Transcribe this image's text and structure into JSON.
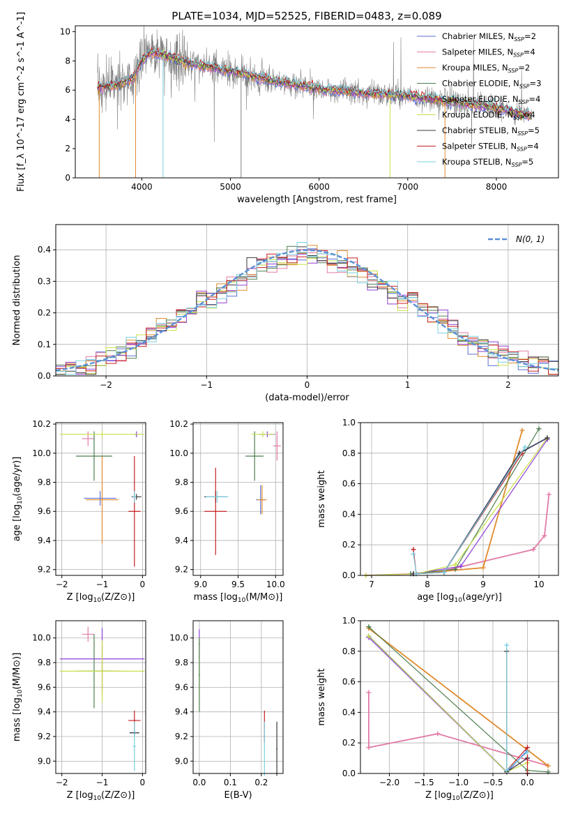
{
  "figure": {
    "title": "PLATE=1034, MJD=52525, FIBERID=0483, z=0.089"
  },
  "colors": {
    "Chabrier MILES": "#5b6fd6",
    "Salpeter MILES": "#e27aa6",
    "Kroupa MILES": "#e08a2c",
    "Chabrier ELODIE": "#4e7d4e",
    "Salpeter ELODIE": "#8e3fd6",
    "Kroupa ELODIE": "#c8e04a",
    "Chabrier STELIB": "#3a3a3a",
    "Salpeter STELIB": "#c81e1e",
    "Kroupa STELIB": "#7ad0e0",
    "data": "#808080",
    "gaussian": "#5b8fd6",
    "grid": "#b0b0b0"
  },
  "chart_data": [
    {
      "id": "spectrum",
      "type": "line",
      "title": "PLATE=1034, MJD=52525, FIBERID=0483, z=0.089",
      "xlabel": "wavelength [Angstrom, rest frame]",
      "ylabel": "Flux [f_λ 10^-17 erg cm^-2 s^-1 A^-1]",
      "xlim": [
        3250,
        8700
      ],
      "ylim": [
        0,
        10.4
      ],
      "xticks": [
        4000,
        5000,
        6000,
        7000,
        8000
      ],
      "yticks": [
        0,
        2,
        4,
        6,
        8,
        10
      ],
      "grid": false,
      "legend_position": "top-right",
      "legend": [
        {
          "label": "Chabrier MILES, N",
          "sub": "SSP",
          "tail": "=2"
        },
        {
          "label": "Salpeter MILES, N",
          "sub": "SSP",
          "tail": "=4"
        },
        {
          "label": "Kroupa MILES, N",
          "sub": "SSP",
          "tail": "=2"
        },
        {
          "label": "Chabrier ELODIE, N",
          "sub": "SSP",
          "tail": "=3"
        },
        {
          "label": "Salpeter ELODIE, N",
          "sub": "SSP",
          "tail": "=4"
        },
        {
          "label": "Kroupa ELODIE, N",
          "sub": "SSP",
          "tail": "=4"
        },
        {
          "label": "Chabrier STELIB, N",
          "sub": "SSP",
          "tail": "=5"
        },
        {
          "label": "Salpeter STELIB, N",
          "sub": "SSP",
          "tail": "=4"
        },
        {
          "label": "Kroupa STELIB, N",
          "sub": "SSP",
          "tail": "=5"
        }
      ],
      "continuum": {
        "x": [
          3500,
          3700,
          3900,
          4000,
          4100,
          4300,
          4500,
          5000,
          5500,
          6000,
          6500,
          7000,
          7500,
          8000,
          8400
        ],
        "y": [
          6.2,
          6.3,
          6.8,
          8.0,
          8.6,
          8.3,
          7.9,
          7.3,
          6.6,
          6.1,
          5.8,
          5.6,
          5.2,
          4.8,
          4.2
        ]
      }
    },
    {
      "id": "residuals",
      "type": "step",
      "xlabel": "(data-model)/error",
      "ylabel": "Normed distribution",
      "xlim": [
        -2.5,
        2.5
      ],
      "ylim": [
        0,
        0.48
      ],
      "xticks": [
        -2,
        -1,
        0,
        1,
        2
      ],
      "yticks": [
        0.0,
        0.1,
        0.2,
        0.3,
        0.4
      ],
      "grid": true,
      "legend_position": "top-right",
      "gaussian_label": "N(0, 1)",
      "bin_width": 0.1
    },
    {
      "id": "age-vs-Z",
      "type": "errorbar",
      "xlabel": "Z [log10(Z/Z⊙)]",
      "ylabel": "age  [log10(age/yr)]",
      "xlim": [
        -2.15,
        0.08
      ],
      "ylim": [
        9.16,
        10.21
      ],
      "xticks": [
        -2,
        -1,
        0
      ],
      "yticks": [
        9.2,
        9.4,
        9.6,
        9.8,
        10.0,
        10.2
      ],
      "grid": true,
      "points": [
        {
          "model": "Chabrier MILES",
          "x": -1.05,
          "y": 9.69,
          "xerr": 0.4,
          "yerr": 0.05
        },
        {
          "model": "Salpeter MILES",
          "x": -1.35,
          "y": 10.1,
          "xerr": 0.15,
          "yerr": 0.05
        },
        {
          "model": "Kroupa MILES",
          "x": -1.0,
          "y": 9.68,
          "xerr": 0.4,
          "yerr": 0.3
        },
        {
          "model": "Chabrier ELODIE",
          "x": -1.2,
          "y": 9.98,
          "xerr": 0.45,
          "yerr": 0.17
        },
        {
          "model": "Salpeter ELODIE",
          "x": -0.15,
          "y": 10.13,
          "xerr": 0.05,
          "yerr": 0.02
        },
        {
          "model": "Kroupa ELODIE",
          "x": -1.0,
          "y": 10.13,
          "xerr": 1.05,
          "yerr": 0.02
        },
        {
          "model": "Chabrier STELIB",
          "x": -0.15,
          "y": 9.7,
          "xerr": 0.12,
          "yerr": 0.02
        },
        {
          "model": "Salpeter STELIB",
          "x": -0.2,
          "y": 9.6,
          "xerr": 0.15,
          "yerr": 0.38
        },
        {
          "model": "Kroupa STELIB",
          "x": -0.2,
          "y": 9.7,
          "xerr": 0.04,
          "yerr": 0.04
        }
      ]
    },
    {
      "id": "age-vs-mass",
      "type": "errorbar",
      "xlabel": "mass [log10(M/M⊙)]",
      "ylabel": "",
      "xlim": [
        8.9,
        10.1
      ],
      "ylim": [
        9.16,
        10.21
      ],
      "xticks": [
        9.0,
        9.5,
        10.0
      ],
      "yticks": [
        9.2,
        9.4,
        9.6,
        9.8,
        10.0,
        10.2
      ],
      "grid": true,
      "points": [
        {
          "model": "Chabrier MILES",
          "x": 9.8,
          "y": 9.68,
          "xerr": 0.06,
          "yerr": 0.1
        },
        {
          "model": "Salpeter MILES",
          "x": 10.02,
          "y": 10.05,
          "xerr": 0.05,
          "yerr": 0.1
        },
        {
          "model": "Kroupa MILES",
          "x": 9.82,
          "y": 9.68,
          "xerr": 0.06,
          "yerr": 0.1
        },
        {
          "model": "Chabrier ELODIE",
          "x": 9.72,
          "y": 9.98,
          "xerr": 0.12,
          "yerr": 0.17
        },
        {
          "model": "Salpeter ELODIE",
          "x": 9.89,
          "y": 10.13,
          "xerr": 0.1,
          "yerr": 0.02
        },
        {
          "model": "Kroupa ELODIE",
          "x": 9.83,
          "y": 10.13,
          "xerr": 0.15,
          "yerr": 0.02
        },
        {
          "model": "Chabrier STELIB",
          "x": 9.2,
          "y": 9.7,
          "xerr": 0.15,
          "yerr": 0.04
        },
        {
          "model": "Salpeter STELIB",
          "x": 9.2,
          "y": 9.6,
          "xerr": 0.15,
          "yerr": 0.3
        },
        {
          "model": "Kroupa STELIB",
          "x": 9.22,
          "y": 9.7,
          "xerr": 0.15,
          "yerr": 0.04
        }
      ]
    },
    {
      "id": "mass-weight-vs-age",
      "type": "line",
      "xlabel": "age  [log10(age/yr)]",
      "ylabel": "mass weight",
      "xlim": [
        6.8,
        10.35
      ],
      "ylim": [
        0,
        1.0
      ],
      "xticks": [
        7,
        8,
        9,
        10
      ],
      "yticks": [
        0.0,
        0.2,
        0.4,
        0.6,
        0.8,
        1.0
      ],
      "grid": true,
      "series": [
        {
          "model": "Chabrier MILES",
          "x": [
            7.7,
            8.3,
            9.65,
            10.15
          ],
          "y": [
            0.01,
            0.02,
            0.8,
            0.9
          ]
        },
        {
          "model": "Salpeter MILES",
          "x": [
            6.9,
            7.75,
            8.3,
            9.9,
            10.1,
            10.18
          ],
          "y": [
            0.0,
            0.01,
            0.03,
            0.17,
            0.26,
            0.53
          ]
        },
        {
          "model": "Kroupa MILES",
          "x": [
            7.75,
            9.0,
            9.7
          ],
          "y": [
            0.01,
            0.05,
            0.95
          ]
        },
        {
          "model": "Chabrier ELODIE",
          "x": [
            7.7,
            8.5,
            10.0
          ],
          "y": [
            0.01,
            0.04,
            0.96
          ]
        },
        {
          "model": "Salpeter ELODIE",
          "x": [
            7.75,
            8.6,
            10.15
          ],
          "y": [
            0.01,
            0.06,
            0.89
          ]
        },
        {
          "model": "Kroupa ELODIE",
          "x": [
            6.9,
            7.8,
            8.5,
            10.15
          ],
          "y": [
            0.0,
            0.01,
            0.07,
            0.9
          ]
        },
        {
          "model": "Chabrier STELIB",
          "x": [
            7.75,
            8.3,
            9.65,
            10.15
          ],
          "y": [
            0.01,
            0.02,
            0.8,
            0.9
          ]
        },
        {
          "model": "Salpeter STELIB",
          "x": [
            7.75,
            7.8,
            8.3,
            9.7
          ],
          "y": [
            0.17,
            0.01,
            0.02,
            0.8
          ]
        },
        {
          "model": "Kroupa STELIB",
          "x": [
            7.75,
            7.8,
            8.3,
            9.75
          ],
          "y": [
            0.14,
            0.01,
            0.02,
            0.84
          ]
        }
      ]
    },
    {
      "id": "mass-vs-Z",
      "type": "errorbar",
      "xlabel": "Z [log10(Z/Z⊙)]",
      "ylabel": "mass [log10(M/M⊙)]",
      "xlim": [
        -2.15,
        0.08
      ],
      "ylim": [
        8.9,
        10.14
      ],
      "xticks": [
        -2,
        -1,
        0
      ],
      "yticks": [
        9.0,
        9.2,
        9.4,
        9.6,
        9.8,
        10.0
      ],
      "grid": true,
      "points": [
        {
          "model": "Chabrier MILES",
          "x": -0.2,
          "y": 9.23,
          "xerr": 0.12,
          "yerr": 0.02
        },
        {
          "model": "Salpeter MILES",
          "x": -1.35,
          "y": 10.03,
          "xerr": 0.15,
          "yerr": 0.06
        },
        {
          "model": "Kroupa MILES",
          "x": -1.0,
          "y": 9.73,
          "xerr": 0.45,
          "yerr": 0.2
        },
        {
          "model": "Chabrier ELODIE",
          "x": -1.2,
          "y": 9.73,
          "xerr": 0.45,
          "yerr": 0.3
        },
        {
          "model": "Salpeter ELODIE",
          "x": -1.0,
          "y": 9.83,
          "xerr": 1.05,
          "yerr": 0.25
        },
        {
          "model": "Kroupa ELODIE",
          "x": -1.0,
          "y": 9.73,
          "xerr": 1.05,
          "yerr": 0.25
        },
        {
          "model": "Chabrier STELIB",
          "x": -0.2,
          "y": 9.23,
          "xerr": 0.12,
          "yerr": 0.02
        },
        {
          "model": "Salpeter STELIB",
          "x": -0.2,
          "y": 9.33,
          "xerr": 0.15,
          "yerr": 0.08
        },
        {
          "model": "Kroupa STELIB",
          "x": -0.2,
          "y": 9.12,
          "xerr": 0.04,
          "yerr": 0.2
        }
      ]
    },
    {
      "id": "mass-vs-EBV",
      "type": "errorbar",
      "xlabel": "E(B-V)",
      "ylabel": "",
      "xlim": [
        -0.02,
        0.27
      ],
      "ylim": [
        8.9,
        10.14
      ],
      "xticks": [
        0.0,
        0.1,
        0.2
      ],
      "yticks": [
        9.0,
        9.2,
        9.4,
        9.6,
        9.8,
        10.0
      ],
      "grid": true,
      "points": [
        {
          "model": "Salpeter ELODIE",
          "x": 0.0,
          "y": 9.95,
          "xerr": 0.002,
          "yerr": 0.12
        },
        {
          "model": "Kroupa ELODIE",
          "x": 0.0,
          "y": 9.75,
          "xerr": 0.002,
          "yerr": 0.25
        },
        {
          "model": "Chabrier ELODIE",
          "x": 0.0,
          "y": 9.7,
          "xerr": 0.002,
          "yerr": 0.3
        },
        {
          "model": "Salpeter STELIB",
          "x": 0.21,
          "y": 9.28,
          "xerr": 0.002,
          "yerr": 0.13
        },
        {
          "model": "Kroupa STELIB",
          "x": 0.21,
          "y": 9.1,
          "xerr": 0.002,
          "yerr": 0.22
        },
        {
          "model": "Chabrier STELIB",
          "x": 0.25,
          "y": 9.1,
          "xerr": 0.002,
          "yerr": 0.22
        }
      ]
    },
    {
      "id": "mass-weight-vs-Z",
      "type": "line",
      "xlabel": "Z [log10(Z/Z⊙)]",
      "ylabel": "mass weight",
      "xlim": [
        -2.42,
        0.45
      ],
      "ylim": [
        0,
        1.0
      ],
      "xticks": [
        -2.0,
        -1.5,
        -1.0,
        -0.5,
        0.0
      ],
      "yticks": [
        0.0,
        0.2,
        0.4,
        0.6,
        0.8,
        1.0
      ],
      "grid": true,
      "series": [
        {
          "model": "Chabrier MILES",
          "x": [
            -2.3,
            -0.3,
            0.0
          ],
          "y": [
            0.9,
            0.01,
            0.15
          ]
        },
        {
          "model": "Salpeter MILES",
          "x": [
            -2.3,
            -2.3,
            -1.3,
            0.3
          ],
          "y": [
            0.53,
            0.17,
            0.26,
            0.05
          ]
        },
        {
          "model": "Kroupa MILES",
          "x": [
            -2.3,
            0.3
          ],
          "y": [
            0.95,
            0.05
          ]
        },
        {
          "model": "Chabrier ELODIE",
          "x": [
            -2.3,
            0.0,
            0.3
          ],
          "y": [
            0.96,
            0.02,
            0.01
          ]
        },
        {
          "model": "Salpeter ELODIE",
          "x": [
            -2.3,
            -0.3,
            0.0
          ],
          "y": [
            0.89,
            0.01,
            0.1
          ]
        },
        {
          "model": "Kroupa ELODIE",
          "x": [
            -2.3,
            -0.3,
            0.0
          ],
          "y": [
            0.9,
            0.01,
            0.07
          ]
        },
        {
          "model": "Chabrier STELIB",
          "x": [
            -0.3,
            -0.3,
            0.0
          ],
          "y": [
            0.8,
            0.01,
            0.1
          ]
        },
        {
          "model": "Salpeter STELIB",
          "x": [
            -0.3,
            0.0,
            0.0
          ],
          "y": [
            0.02,
            0.17,
            0.0
          ]
        },
        {
          "model": "Kroupa STELIB",
          "x": [
            -0.3,
            -0.3,
            0.0
          ],
          "y": [
            0.84,
            0.02,
            0.14
          ]
        }
      ]
    }
  ]
}
